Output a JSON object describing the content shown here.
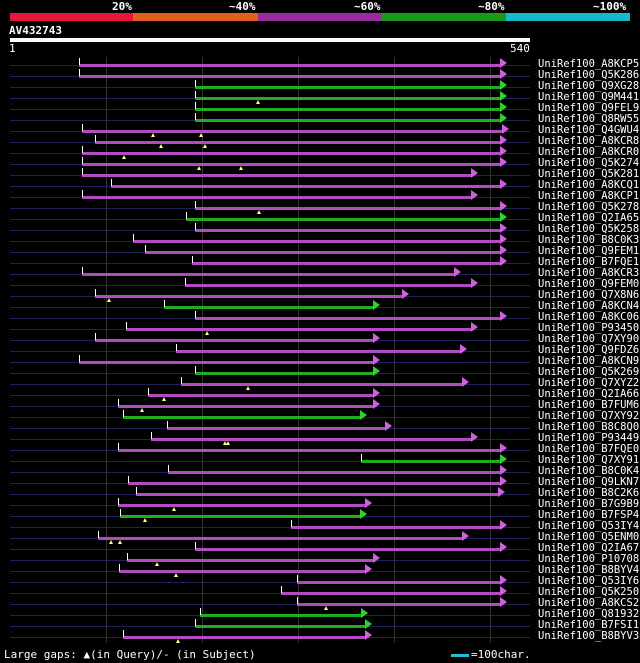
{
  "query": {
    "id": "AV432743",
    "length_start": "1",
    "length_end": "540",
    "length": 540
  },
  "identity_scale": {
    "labels": [
      "20%",
      "~40%",
      "~60%",
      "~80%",
      "~100%"
    ],
    "band_colors": [
      "#e8173a",
      "#e06020",
      "#9a2aa0",
      "#1a9a1a",
      "#18b8c8"
    ]
  },
  "colors": {
    "purple": "#b04cc0",
    "green": "#1fae1f",
    "baseline": "#1e2257",
    "gap": "#ffff80"
  },
  "hits": [
    {
      "id": "UniRef100_A8KCP5",
      "start": 72,
      "end": 510,
      "color": "purple",
      "ticks": [],
      "gaps": []
    },
    {
      "id": "UniRef100_Q5K286",
      "start": 72,
      "end": 510,
      "color": "purple",
      "ticks": [],
      "gaps": []
    },
    {
      "id": "UniRef100_Q9XG28",
      "start": 192,
      "end": 510,
      "color": "green",
      "ticks": [],
      "gaps": []
    },
    {
      "id": "UniRef100_Q9M441",
      "start": 192,
      "end": 510,
      "color": "green",
      "ticks": [],
      "gaps": [
        258
      ]
    },
    {
      "id": "UniRef100_Q9FEL9",
      "start": 192,
      "end": 510,
      "color": "green",
      "ticks": [],
      "gaps": []
    },
    {
      "id": "UniRef100_Q8RW55",
      "start": 192,
      "end": 510,
      "color": "green",
      "ticks": [],
      "gaps": []
    },
    {
      "id": "UniRef100_Q4GWU4",
      "start": 75,
      "end": 512,
      "color": "purple",
      "ticks": [],
      "gaps": [
        148,
        198
      ]
    },
    {
      "id": "UniRef100_A8KCR8",
      "start": 88,
      "end": 510,
      "color": "purple",
      "ticks": [],
      "gaps": [
        157,
        203
      ]
    },
    {
      "id": "UniRef100_A8KCR0",
      "start": 75,
      "end": 510,
      "color": "purple",
      "ticks": [],
      "gaps": [
        118
      ]
    },
    {
      "id": "UniRef100_Q5K274",
      "start": 75,
      "end": 510,
      "color": "purple",
      "ticks": [],
      "gaps": [
        196,
        240
      ]
    },
    {
      "id": "UniRef100_Q5K281",
      "start": 75,
      "end": 480,
      "color": "purple",
      "ticks": [],
      "gaps": []
    },
    {
      "id": "UniRef100_A8KCQ1",
      "start": 105,
      "end": 510,
      "color": "purple",
      "ticks": [],
      "gaps": []
    },
    {
      "id": "UniRef100_A8KCP1",
      "start": 75,
      "end": 480,
      "color": "purple",
      "ticks": [],
      "gaps": []
    },
    {
      "id": "UniRef100_Q5K278",
      "start": 192,
      "end": 510,
      "color": "purple",
      "ticks": [],
      "gaps": [
        259
      ]
    },
    {
      "id": "UniRef100_Q2IA65",
      "start": 183,
      "end": 510,
      "color": "green",
      "ticks": [],
      "gaps": []
    },
    {
      "id": "UniRef100_Q5K258",
      "start": 192,
      "end": 510,
      "color": "purple",
      "ticks": [],
      "gaps": []
    },
    {
      "id": "UniRef100_B8C0K3",
      "start": 128,
      "end": 510,
      "color": "purple",
      "ticks": [],
      "gaps": []
    },
    {
      "id": "UniRef100_Q9FEM1",
      "start": 140,
      "end": 510,
      "color": "purple",
      "ticks": [],
      "gaps": []
    },
    {
      "id": "UniRef100_B7FQE1",
      "start": 189,
      "end": 510,
      "color": "purple",
      "ticks": [],
      "gaps": []
    },
    {
      "id": "UniRef100_A8KCR3",
      "start": 75,
      "end": 462,
      "color": "purple",
      "ticks": [],
      "gaps": []
    },
    {
      "id": "UniRef100_Q9FEM0",
      "start": 182,
      "end": 480,
      "color": "purple",
      "ticks": [],
      "gaps": []
    },
    {
      "id": "UniRef100_Q7X8N6",
      "start": 88,
      "end": 408,
      "color": "purple",
      "ticks": [],
      "gaps": [
        103
      ]
    },
    {
      "id": "UniRef100_A8KCN4",
      "start": 160,
      "end": 378,
      "color": "green",
      "ticks": [],
      "gaps": []
    },
    {
      "id": "UniRef100_A8KC06",
      "start": 192,
      "end": 510,
      "color": "purple",
      "ticks": [],
      "gaps": []
    },
    {
      "id": "UniRef100_P93450",
      "start": 120,
      "end": 480,
      "color": "purple",
      "ticks": [],
      "gaps": [
        205
      ]
    },
    {
      "id": "UniRef100_Q7XY90",
      "start": 88,
      "end": 378,
      "color": "purple",
      "ticks": [],
      "gaps": []
    },
    {
      "id": "UniRef100_Q9FDZ6",
      "start": 172,
      "end": 468,
      "color": "purple",
      "ticks": [],
      "gaps": []
    },
    {
      "id": "UniRef100_A8KCN9",
      "start": 72,
      "end": 378,
      "color": "purple",
      "ticks": [],
      "gaps": []
    },
    {
      "id": "UniRef100_Q5K269",
      "start": 192,
      "end": 378,
      "color": "green",
      "ticks": [],
      "gaps": []
    },
    {
      "id": "UniRef100_Q7XYZ2",
      "start": 178,
      "end": 470,
      "color": "purple",
      "ticks": [],
      "gaps": [
        247
      ]
    },
    {
      "id": "UniRef100_Q2IA66",
      "start": 143,
      "end": 378,
      "color": "purple",
      "ticks": [],
      "gaps": [
        160
      ]
    },
    {
      "id": "UniRef100_B7FUM6",
      "start": 112,
      "end": 378,
      "color": "purple",
      "ticks": [],
      "gaps": [
        137
      ]
    },
    {
      "id": "UniRef100_Q7XY92",
      "start": 117,
      "end": 364,
      "color": "green",
      "ticks": [],
      "gaps": []
    },
    {
      "id": "UniRef100_B8C8Q0",
      "start": 163,
      "end": 390,
      "color": "purple",
      "ticks": [],
      "gaps": []
    },
    {
      "id": "UniRef100_P93449",
      "start": 146,
      "end": 480,
      "color": "purple",
      "ticks": [],
      "gaps": [
        223,
        226
      ]
    },
    {
      "id": "UniRef100_B7FQE0",
      "start": 112,
      "end": 510,
      "color": "purple",
      "ticks": [],
      "gaps": []
    },
    {
      "id": "UniRef100_Q7XY91",
      "start": 365,
      "end": 510,
      "color": "green",
      "ticks": [],
      "gaps": []
    },
    {
      "id": "UniRef100_B8C0K4",
      "start": 164,
      "end": 510,
      "color": "purple",
      "ticks": [],
      "gaps": []
    },
    {
      "id": "UniRef100_Q9LKN7",
      "start": 123,
      "end": 510,
      "color": "purple",
      "ticks": [],
      "gaps": []
    },
    {
      "id": "UniRef100_B8C2K6",
      "start": 131,
      "end": 508,
      "color": "purple",
      "ticks": [],
      "gaps": []
    },
    {
      "id": "UniRef100_B7G9B9",
      "start": 112,
      "end": 370,
      "color": "purple",
      "ticks": [],
      "gaps": [
        170
      ]
    },
    {
      "id": "UniRef100_B7FSP4",
      "start": 114,
      "end": 365,
      "color": "green",
      "ticks": [],
      "gaps": [
        140
      ]
    },
    {
      "id": "UniRef100_Q53IY4",
      "start": 292,
      "end": 510,
      "color": "purple",
      "ticks": [],
      "gaps": []
    },
    {
      "id": "UniRef100_Q5ENM0",
      "start": 91,
      "end": 470,
      "color": "purple",
      "ticks": [],
      "gaps": [
        105,
        114
      ]
    },
    {
      "id": "UniRef100_Q2IA67",
      "start": 192,
      "end": 510,
      "color": "purple",
      "ticks": [],
      "gaps": []
    },
    {
      "id": "UniRef100_P10708",
      "start": 122,
      "end": 378,
      "color": "purple",
      "ticks": [],
      "gaps": [
        153
      ]
    },
    {
      "id": "UniRef100_B8BYV4",
      "start": 113,
      "end": 370,
      "color": "purple",
      "ticks": [],
      "gaps": [
        172
      ]
    },
    {
      "id": "UniRef100_Q53IY6",
      "start": 298,
      "end": 510,
      "color": "purple",
      "ticks": [],
      "gaps": []
    },
    {
      "id": "UniRef100_Q5K250",
      "start": 281,
      "end": 510,
      "color": "purple",
      "ticks": [],
      "gaps": []
    },
    {
      "id": "UniRef100_A8KCS2",
      "start": 298,
      "end": 510,
      "color": "purple",
      "ticks": [],
      "gaps": [
        328
      ]
    },
    {
      "id": "UniRef100_Q81932",
      "start": 197,
      "end": 366,
      "color": "green",
      "ticks": [],
      "gaps": []
    },
    {
      "id": "UniRef100_B7FSI1",
      "start": 192,
      "end": 370,
      "color": "green",
      "ticks": [],
      "gaps": []
    },
    {
      "id": "UniRef100_B8BYV3",
      "start": 117,
      "end": 370,
      "color": "purple",
      "ticks": [],
      "gaps": [
        174
      ]
    }
  ],
  "footer": {
    "legend": "Large gaps: ▲(in Query)/- (in Subject)",
    "scale": "=100char."
  }
}
